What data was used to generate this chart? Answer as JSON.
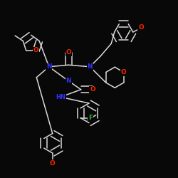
{
  "bg_color": "#080808",
  "bond_color": "#d8d8d8",
  "atom_colors": {
    "N": "#3333ff",
    "O": "#ff2200",
    "F": "#33bb33",
    "C": "#d8d8d8"
  },
  "font_size": 6.5,
  "bond_width": 1.1,
  "dbo": 0.018
}
